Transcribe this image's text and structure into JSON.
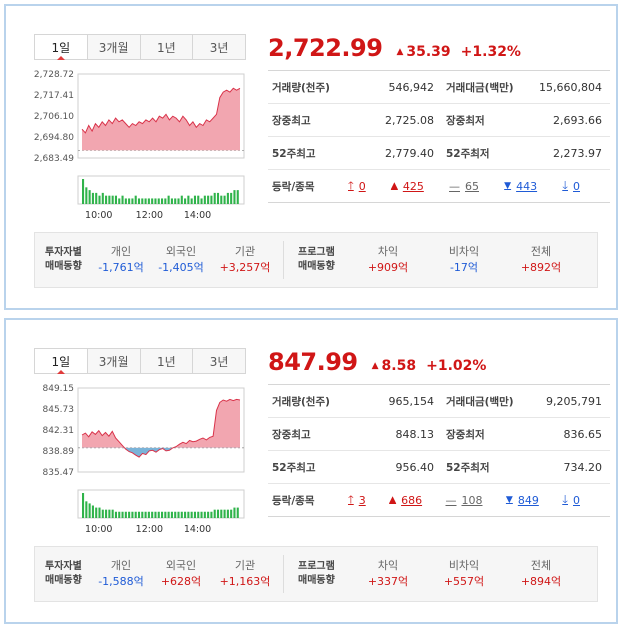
{
  "panels": [
    {
      "tabs": [
        "1일",
        "3개월",
        "1년",
        "3년"
      ],
      "active_tab": 0,
      "price": "2,722.99",
      "change": "35.39",
      "change_pct": "+1.32%",
      "stats": [
        {
          "l1": "거래량(천주)",
          "v1": "546,942",
          "l2": "거래대금(백만)",
          "v2": "15,660,804"
        },
        {
          "l1": "장중최고",
          "v1": "2,725.08",
          "l2": "장중최저",
          "v2": "2,693.66"
        },
        {
          "l1": "52주최고",
          "v1": "2,779.40",
          "l2": "52주최저",
          "v2": "2,273.97"
        }
      ],
      "adv_label": "등락/종목",
      "adv": {
        "upper": "0",
        "up": "425",
        "flat": "65",
        "down": "443",
        "lower": "0"
      },
      "investors": {
        "header_l1": "투자자별",
        "header_l2": "매매동향",
        "items": [
          {
            "label": "개인",
            "value": "-1,761억",
            "dir": "down"
          },
          {
            "label": "외국인",
            "value": "-1,405억",
            "dir": "down"
          },
          {
            "label": "기관",
            "value": "+3,257억",
            "dir": "up"
          }
        ],
        "program_l1": "프로그램",
        "program_l2": "매매동향",
        "program": [
          {
            "label": "차익",
            "value": "+909억",
            "dir": "up"
          },
          {
            "label": "비차익",
            "value": "-17억",
            "dir": "down"
          },
          {
            "label": "전체",
            "value": "+892억",
            "dir": "up"
          }
        ]
      },
      "chart_data": {
        "type": "area",
        "y_ticks": [
          "2,728.72",
          "2,717.41",
          "2,706.10",
          "2,694.80",
          "2,683.49"
        ],
        "ylim": [
          2683.49,
          2728.72
        ],
        "baseline": 2687.6,
        "x_ticks": [
          "10:00",
          "12:00",
          "14:00"
        ],
        "fill_color": "#f2a6b0",
        "line_color": "#d9334a",
        "values": [
          2699,
          2697,
          2701,
          2698,
          2702,
          2700,
          2703,
          2701,
          2704,
          2702,
          2705,
          2703,
          2704,
          2702,
          2700,
          2702,
          2701,
          2703,
          2702,
          2704,
          2703,
          2705,
          2703,
          2706,
          2705,
          2707,
          2704,
          2706,
          2705,
          2703,
          2706,
          2704,
          2701,
          2703,
          2700,
          2702,
          2701,
          2704,
          2703,
          2705,
          2707,
          2716,
          2719,
          2720,
          2719,
          2721,
          2720,
          2721
        ],
        "volume": [
          9,
          6,
          5,
          4,
          4,
          3,
          4,
          3,
          3,
          3,
          3,
          2,
          3,
          2,
          2,
          2,
          3,
          2,
          2,
          2,
          2,
          2,
          2,
          2,
          2,
          2,
          3,
          2,
          2,
          2,
          3,
          2,
          3,
          2,
          3,
          3,
          2,
          3,
          3,
          3,
          4,
          4,
          3,
          3,
          4,
          4,
          5,
          5
        ]
      }
    },
    {
      "tabs": [
        "1일",
        "3개월",
        "1년",
        "3년"
      ],
      "active_tab": 0,
      "price": "847.99",
      "change": "8.58",
      "change_pct": "+1.02%",
      "stats": [
        {
          "l1": "거래량(천주)",
          "v1": "965,154",
          "l2": "거래대금(백만)",
          "v2": "9,205,791"
        },
        {
          "l1": "장중최고",
          "v1": "848.13",
          "l2": "장중최저",
          "v2": "836.65"
        },
        {
          "l1": "52주최고",
          "v1": "956.40",
          "l2": "52주최저",
          "v2": "734.20"
        }
      ],
      "adv_label": "등락/종목",
      "adv": {
        "upper": "3",
        "up": "686",
        "flat": "108",
        "down": "849",
        "lower": "0"
      },
      "investors": {
        "header_l1": "투자자별",
        "header_l2": "매매동향",
        "items": [
          {
            "label": "개인",
            "value": "-1,588억",
            "dir": "down"
          },
          {
            "label": "외국인",
            "value": "+628억",
            "dir": "up"
          },
          {
            "label": "기관",
            "value": "+1,163억",
            "dir": "up"
          }
        ],
        "program_l1": "프로그램",
        "program_l2": "매매동향",
        "program": [
          {
            "label": "차익",
            "value": "+337억",
            "dir": "up"
          },
          {
            "label": "비차익",
            "value": "+557억",
            "dir": "up"
          },
          {
            "label": "전체",
            "value": "+894억",
            "dir": "up"
          }
        ]
      },
      "chart_data": {
        "type": "area",
        "y_ticks": [
          "849.15",
          "845.73",
          "842.31",
          "838.89",
          "835.47"
        ],
        "ylim": [
          835.47,
          849.15
        ],
        "baseline": 839.41,
        "x_ticks": [
          "10:00",
          "12:00",
          "14:00"
        ],
        "fill_color": "#f2a6b0",
        "neg_fill_color": "#7ab3d8",
        "line_color": "#d9334a",
        "values": [
          841.5,
          841.8,
          841.2,
          842.0,
          841.6,
          842.2,
          841.4,
          841.9,
          841.3,
          842.1,
          841.0,
          840.4,
          839.8,
          839.2,
          838.8,
          838.6,
          838.2,
          837.9,
          838.5,
          838.3,
          838.9,
          839.0,
          838.7,
          839.1,
          839.3,
          838.9,
          839.0,
          839.4,
          839.6,
          840.0,
          840.3,
          840.1,
          840.6,
          840.4,
          840.5,
          840.8,
          841.0,
          840.7,
          841.1,
          841.3,
          845.5,
          846.8,
          847.2,
          847.0,
          847.3,
          847.1,
          847.3,
          847.2
        ],
        "volume": [
          12,
          8,
          7,
          6,
          5,
          5,
          4,
          4,
          4,
          4,
          3,
          3,
          3,
          3,
          3,
          3,
          3,
          3,
          3,
          3,
          3,
          3,
          3,
          3,
          3,
          3,
          3,
          3,
          3,
          3,
          3,
          3,
          3,
          3,
          3,
          3,
          3,
          3,
          3,
          3,
          4,
          4,
          4,
          4,
          4,
          4,
          5,
          5
        ]
      }
    }
  ]
}
